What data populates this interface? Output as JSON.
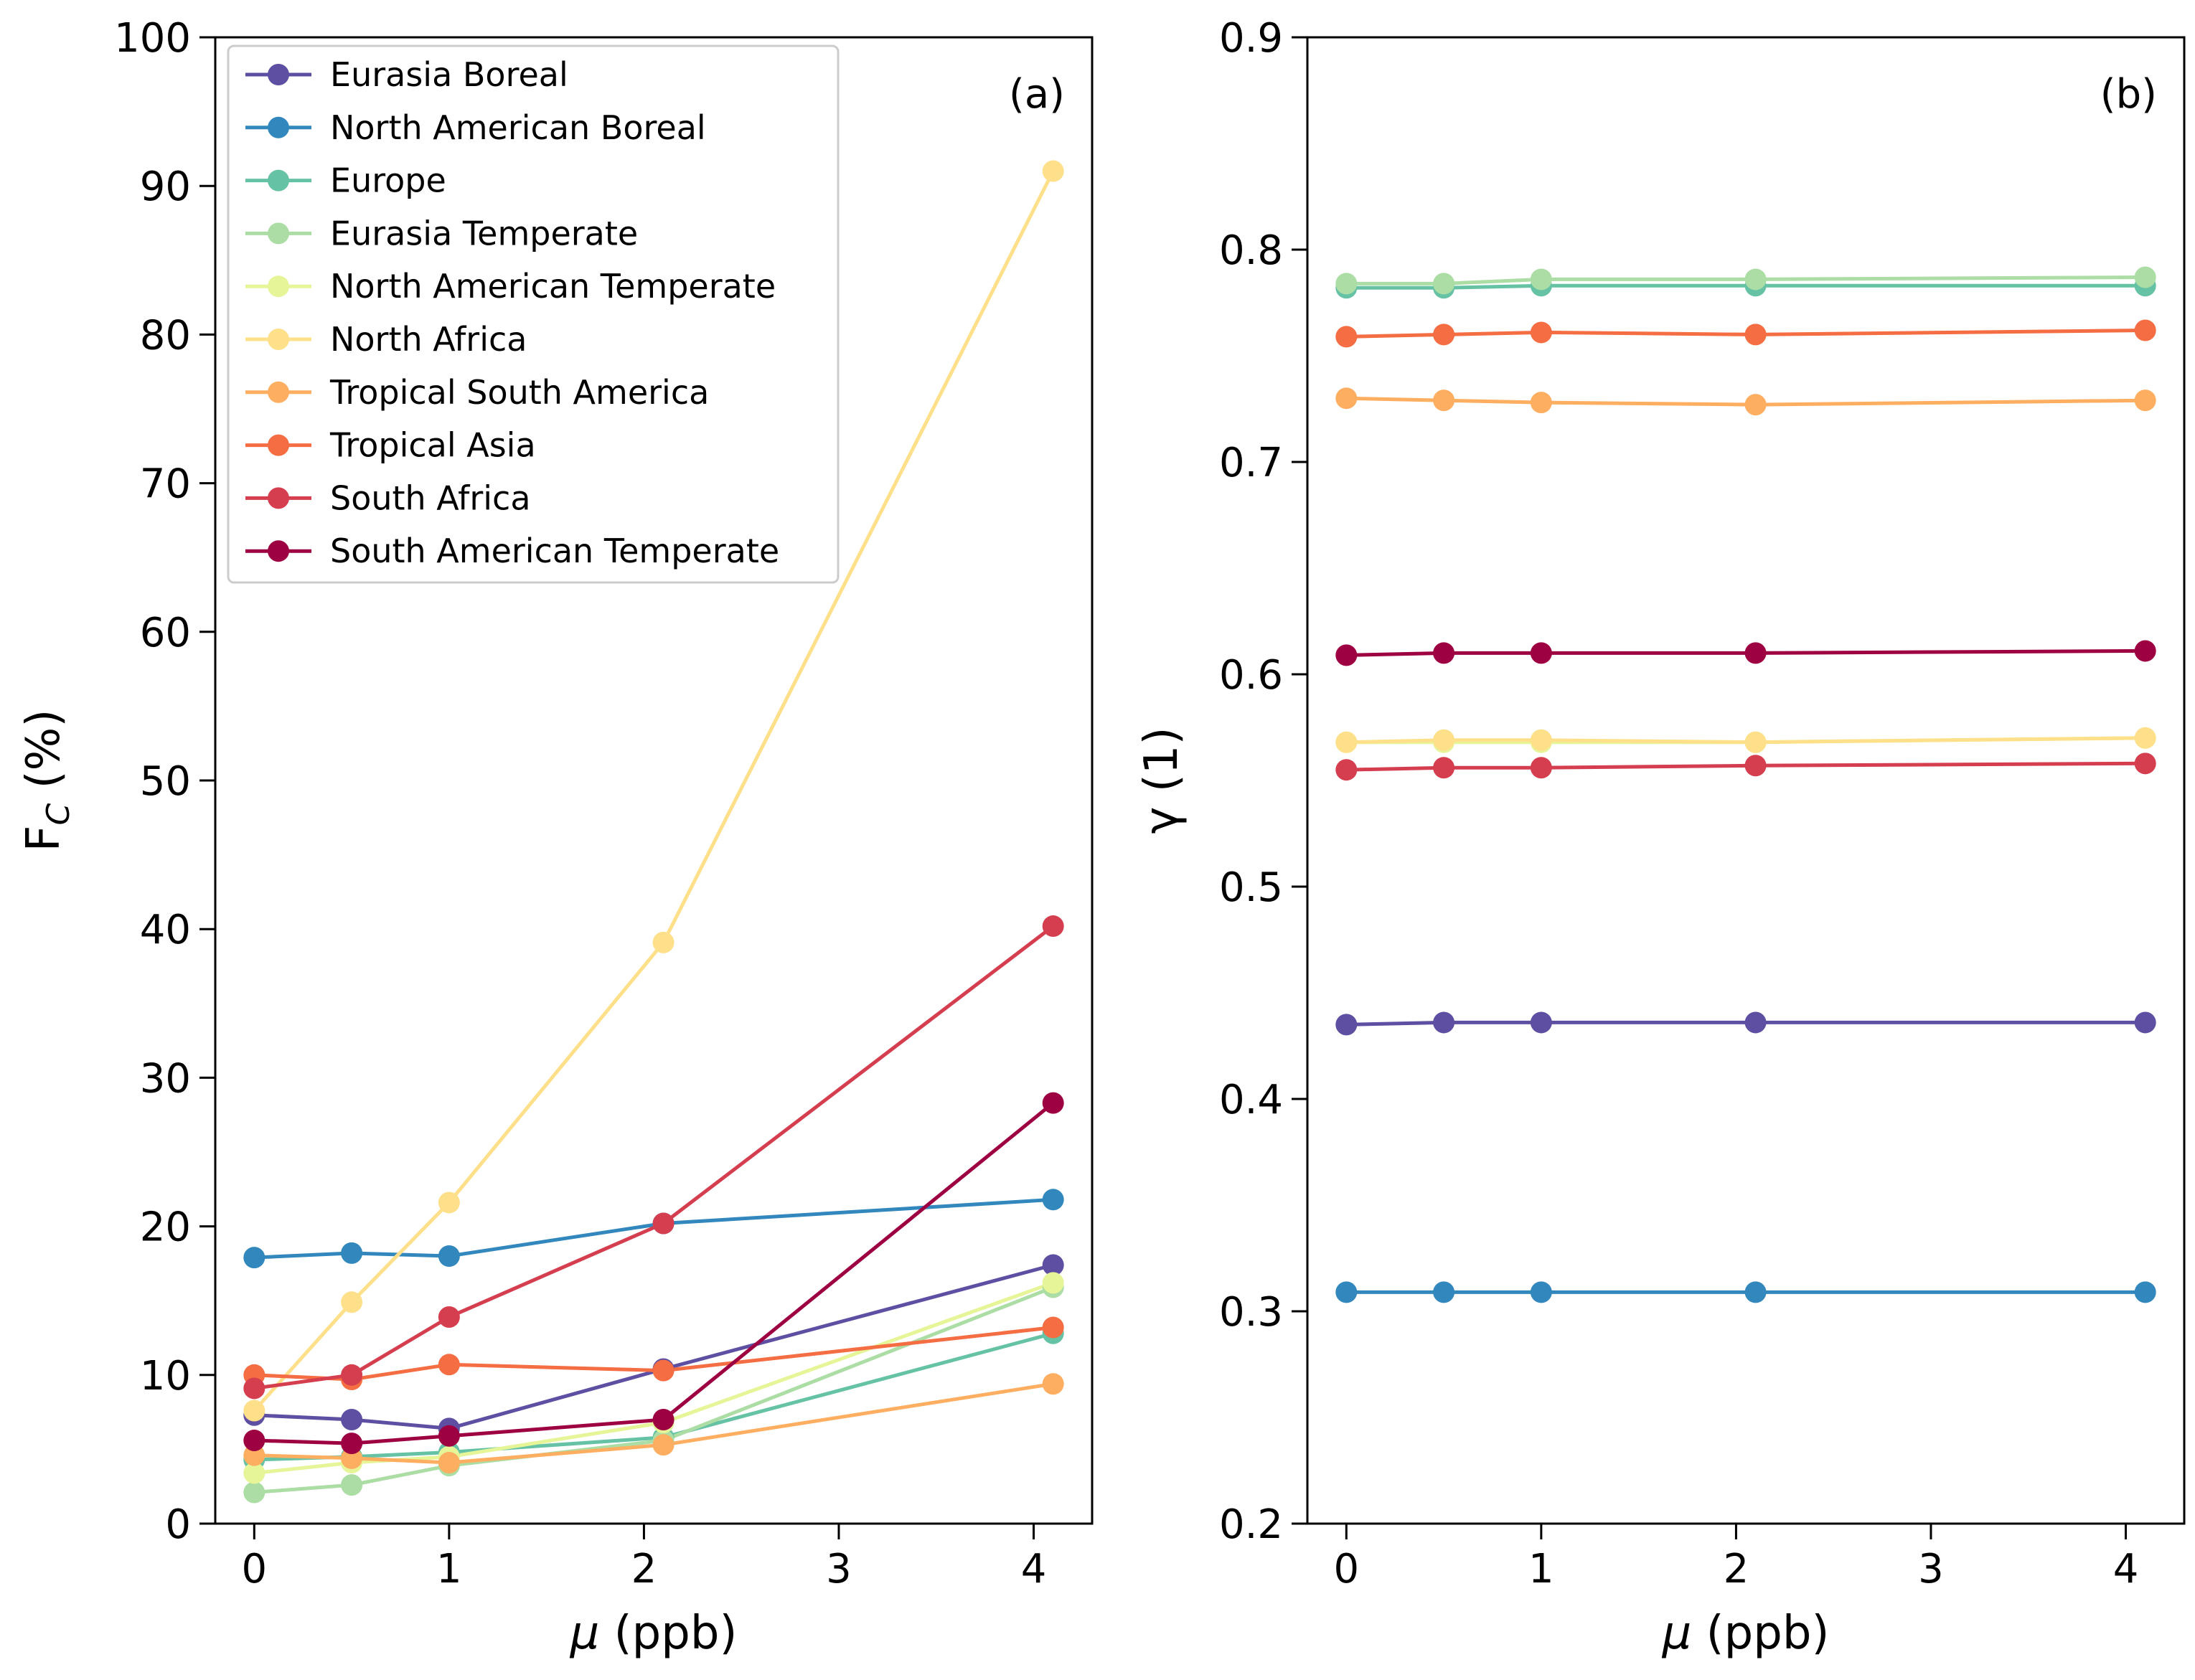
{
  "chart_data": [
    {
      "type": "line",
      "panel_label": "(a)",
      "xlabel_symbol": "μ",
      "xlabel_unit": " (ppb)",
      "ylabel_main": "F",
      "ylabel_sub": "C",
      "ylabel_unit": " (%)",
      "xlim": [
        -0.2,
        4.3
      ],
      "ylim": [
        0,
        100
      ],
      "xticks": [
        0,
        1,
        2,
        3,
        4
      ],
      "yticks": [
        0,
        10,
        20,
        30,
        40,
        50,
        60,
        70,
        80,
        90,
        100
      ],
      "grid": false,
      "legend_position": "top-left",
      "x": [
        0,
        0.5,
        1,
        2.1,
        4.1
      ],
      "series": [
        {
          "name": "Eurasia Boreal",
          "color": "#5e4fa2",
          "values": [
            7.3,
            7.0,
            6.4,
            10.4,
            17.4
          ]
        },
        {
          "name": "North American Boreal",
          "color": "#3288bd",
          "values": [
            17.9,
            18.2,
            18.0,
            20.2,
            21.8
          ]
        },
        {
          "name": "Europe",
          "color": "#66c2a5",
          "values": [
            4.3,
            4.5,
            4.8,
            5.8,
            12.8
          ]
        },
        {
          "name": "Eurasia Temperate",
          "color": "#abdda4",
          "values": [
            2.1,
            2.6,
            3.9,
            5.6,
            15.9
          ]
        },
        {
          "name": "North American Temperate",
          "color": "#e6f598",
          "values": [
            3.4,
            4.1,
            4.5,
            6.8,
            16.2
          ]
        },
        {
          "name": "North Africa",
          "color": "#fee08b",
          "values": [
            7.6,
            14.9,
            21.6,
            39.1,
            91.0
          ]
        },
        {
          "name": "Tropical South America",
          "color": "#fdae61",
          "values": [
            4.6,
            4.4,
            4.1,
            5.3,
            9.4
          ]
        },
        {
          "name": "Tropical Asia",
          "color": "#f46d43",
          "values": [
            10.0,
            9.7,
            10.7,
            10.3,
            13.2
          ]
        },
        {
          "name": "South Africa",
          "color": "#d53e4f",
          "values": [
            9.1,
            10.0,
            13.9,
            20.2,
            40.2
          ]
        },
        {
          "name": "South American Temperate",
          "color": "#9e0142",
          "values": [
            5.6,
            5.4,
            5.9,
            7.0,
            28.3
          ]
        }
      ]
    },
    {
      "type": "line",
      "panel_label": "(b)",
      "xlabel_symbol": "μ",
      "xlabel_unit": " (ppb)",
      "ylabel_main": "γ (1)",
      "xlim": [
        -0.2,
        4.3
      ],
      "ylim": [
        0.2,
        0.9
      ],
      "xticks": [
        0,
        1,
        2,
        3,
        4
      ],
      "yticks": [
        0.2,
        0.3,
        0.4,
        0.5,
        0.6,
        0.7,
        0.8,
        0.9
      ],
      "ytick_labels": [
        "0.2",
        "0.3",
        "0.4",
        "0.5",
        "0.6",
        "0.7",
        "0.8",
        "0.9"
      ],
      "grid": false,
      "x": [
        0,
        0.5,
        1,
        2.1,
        4.1
      ],
      "series": [
        {
          "name": "Eurasia Boreal",
          "color": "#5e4fa2",
          "values": [
            0.435,
            0.436,
            0.436,
            0.436,
            0.436
          ]
        },
        {
          "name": "North American Boreal",
          "color": "#3288bd",
          "values": [
            0.309,
            0.309,
            0.309,
            0.309,
            0.309
          ]
        },
        {
          "name": "Europe",
          "color": "#66c2a5",
          "values": [
            0.782,
            0.782,
            0.783,
            0.783,
            0.783
          ]
        },
        {
          "name": "Eurasia Temperate",
          "color": "#abdda4",
          "values": [
            0.784,
            0.784,
            0.786,
            0.786,
            0.787
          ]
        },
        {
          "name": "North American Temperate",
          "color": "#e6f598",
          "values": [
            0.568,
            0.568,
            0.568,
            0.568,
            0.57
          ]
        },
        {
          "name": "North Africa",
          "color": "#fee08b",
          "values": [
            0.568,
            0.569,
            0.569,
            0.568,
            0.57
          ]
        },
        {
          "name": "Tropical South America",
          "color": "#fdae61",
          "values": [
            0.73,
            0.729,
            0.728,
            0.727,
            0.729
          ]
        },
        {
          "name": "Tropical Asia",
          "color": "#f46d43",
          "values": [
            0.759,
            0.76,
            0.761,
            0.76,
            0.762
          ]
        },
        {
          "name": "South Africa",
          "color": "#d53e4f",
          "values": [
            0.555,
            0.556,
            0.556,
            0.557,
            0.558
          ]
        },
        {
          "name": "South American Temperate",
          "color": "#9e0142",
          "values": [
            0.609,
            0.61,
            0.61,
            0.61,
            0.611
          ]
        }
      ]
    }
  ]
}
